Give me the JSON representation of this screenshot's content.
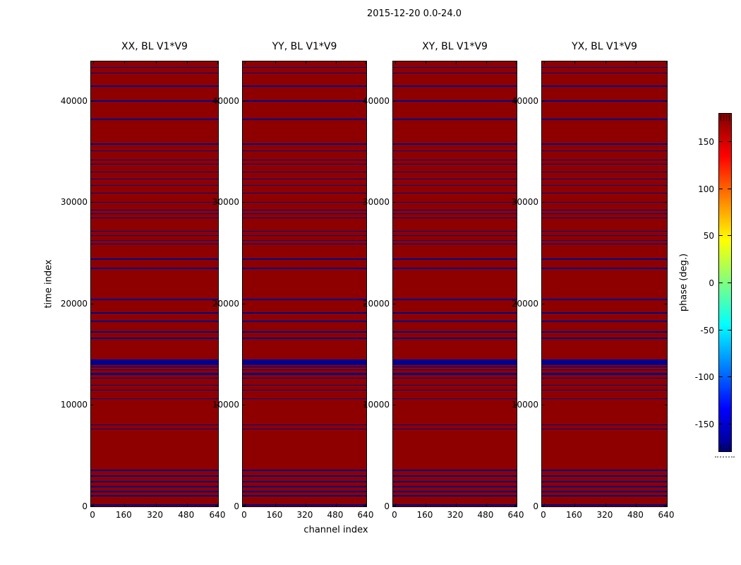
{
  "figure": {
    "title": "2015-12-20 0.0-24.0"
  },
  "chart_data": {
    "type": "heatmap",
    "title": "2015-12-20 0.0-24.0",
    "panels": [
      {
        "title": "XX, BL V1*V9"
      },
      {
        "title": "YY, BL V1*V9"
      },
      {
        "title": "XY, BL V1*V9"
      },
      {
        "title": "YX, BL V1*V9"
      }
    ],
    "xlabel": "channel index",
    "ylabel": "time index",
    "x_axis": {
      "ticks": [
        0,
        160,
        320,
        480,
        640
      ],
      "tick_labels": [
        "0",
        "160",
        "320",
        "480",
        "640"
      ],
      "range": [
        -11,
        640
      ]
    },
    "y_axis": {
      "ticks": [
        0,
        10000,
        20000,
        30000,
        40000
      ],
      "tick_labels": [
        "0",
        "10000",
        "20000",
        "30000",
        "40000"
      ],
      "range": [
        0,
        43900
      ]
    },
    "colorbar": {
      "label": "phase (deg.)",
      "ticks": [
        150,
        100,
        50,
        0,
        -50,
        -100,
        -150
      ],
      "tick_labels": [
        "150",
        "100",
        "50",
        "0",
        "-50",
        "-100",
        "-150"
      ],
      "range": [
        -180,
        180
      ],
      "colormap": "jet",
      "gradient_stops_top_to_bottom": [
        "#800000",
        "#ff0000",
        "#ffff00",
        "#00ffff",
        "#0000ff",
        "#000080"
      ],
      "gradient_positions_pct": [
        0,
        12.5,
        37.5,
        62.5,
        87.5,
        100
      ]
    },
    "colors": {
      "background_phase": "#8e0000",
      "row_line": "#000088",
      "thick_band": "#000091",
      "axis": "#000000"
    },
    "background_phase_deg": 180,
    "row_phase_deg": -180,
    "blue_rows_time_index": [
      {
        "t": 43300,
        "h": 1.5
      },
      {
        "t": 42750,
        "h": 1.5
      },
      {
        "t": 41450,
        "h": 1.5
      },
      {
        "t": 40000,
        "h": 1.5
      },
      {
        "t": 38200,
        "h": 1.5
      },
      {
        "t": 35760,
        "h": 1.5
      },
      {
        "t": 35070,
        "h": 1.5
      },
      {
        "t": 34170,
        "h": 1.5
      },
      {
        "t": 33750,
        "h": 1.5
      },
      {
        "t": 32990,
        "h": 1.5
      },
      {
        "t": 32290,
        "h": 1.5
      },
      {
        "t": 31670,
        "h": 1.5
      },
      {
        "t": 30900,
        "h": 1.5
      },
      {
        "t": 30000,
        "h": 1.5
      },
      {
        "t": 29240,
        "h": 1.5
      },
      {
        "t": 28890,
        "h": 1.5
      },
      {
        "t": 28470,
        "h": 1.5
      },
      {
        "t": 27150,
        "h": 1.5
      },
      {
        "t": 26740,
        "h": 1.5
      },
      {
        "t": 26250,
        "h": 1.5
      },
      {
        "t": 25900,
        "h": 1.5
      },
      {
        "t": 24380,
        "h": 1.5
      },
      {
        "t": 23470,
        "h": 1.5
      },
      {
        "t": 20420,
        "h": 1.5
      },
      {
        "t": 19100,
        "h": 1.5
      },
      {
        "t": 18260,
        "h": 1.5
      },
      {
        "t": 17220,
        "h": 1.5
      },
      {
        "t": 16600,
        "h": 1.5
      },
      {
        "t": 14200,
        "h": 8
      },
      {
        "t": 13750,
        "h": 1.5
      },
      {
        "t": 13470,
        "h": 1.5
      },
      {
        "t": 13060,
        "h": 2.5
      },
      {
        "t": 12640,
        "h": 1.5
      },
      {
        "t": 11940,
        "h": 1.5
      },
      {
        "t": 11460,
        "h": 1.5
      },
      {
        "t": 10630,
        "h": 1.5
      },
      {
        "t": 8060,
        "h": 1.5
      },
      {
        "t": 7640,
        "h": 1.5
      },
      {
        "t": 3540,
        "h": 1.5
      },
      {
        "t": 2990,
        "h": 1.5
      },
      {
        "t": 2430,
        "h": 1.5
      },
      {
        "t": 1940,
        "h": 1.5
      },
      {
        "t": 1460,
        "h": 1.5
      },
      {
        "t": 1040,
        "h": 1.5
      },
      {
        "t": 140,
        "h": 2
      }
    ]
  }
}
